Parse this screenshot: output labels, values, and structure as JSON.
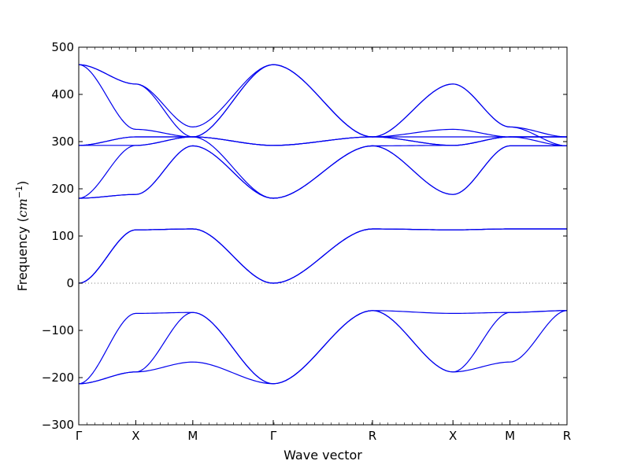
{
  "chart_data": {
    "type": "line",
    "title": "",
    "xlabel": "Wave vector",
    "ylabel_parts": [
      "Frequency (",
      "cm",
      "−1",
      ")"
    ],
    "ylim": [
      -300,
      500
    ],
    "yticks": [
      -300,
      -200,
      -100,
      0,
      100,
      200,
      300,
      400,
      500
    ],
    "ytick_labels": [
      "−300",
      "−200",
      "−100",
      "0",
      "100",
      "200",
      "300",
      "400",
      "500"
    ],
    "k_path_positions": [
      0,
      0.73,
      1.46,
      2.49,
      3.76,
      4.79,
      5.52,
      6.25
    ],
    "k_path_labels": [
      "Γ",
      "X",
      "M",
      "Γ",
      "R",
      "X",
      "M",
      "R"
    ],
    "xlim": [
      0,
      6.25
    ],
    "zero_line": true,
    "grid": false,
    "color": "#0000ee",
    "series": [
      {
        "x": [
          0,
          0.73,
          1.46,
          2.49,
          3.76,
          4.79,
          5.52,
          6.25
        ],
        "y": [
          -213,
          -188,
          -167,
          -213,
          -58,
          -188,
          -167,
          -58
        ]
      },
      {
        "x": [
          0,
          0.73,
          1.46,
          2.49,
          3.76,
          4.79,
          5.52,
          6.25
        ],
        "y": [
          -213,
          -188,
          -62,
          -213,
          -58,
          -188,
          -62,
          -58
        ]
      },
      {
        "x": [
          0,
          0.73,
          1.46,
          2.49,
          3.76,
          4.79,
          5.52,
          6.25
        ],
        "y": [
          -213,
          -64,
          -62,
          -213,
          -58,
          -64,
          -62,
          -58
        ]
      },
      {
        "x": [
          0,
          0.73,
          1.46,
          2.49,
          3.76,
          4.79,
          5.52,
          6.25
        ],
        "y": [
          0,
          113,
          115,
          0,
          115,
          113,
          115,
          115
        ]
      },
      {
        "x": [
          0,
          0.73,
          1.46,
          2.49,
          3.76,
          4.79,
          5.52,
          6.25
        ],
        "y": [
          0,
          113,
          115,
          0,
          115,
          113,
          115,
          115
        ]
      },
      {
        "x": [
          0,
          0.73,
          1.46,
          2.49,
          3.76,
          4.79,
          5.52,
          6.25
        ],
        "y": [
          0,
          113,
          115,
          0,
          115,
          113,
          115,
          115
        ]
      },
      {
        "x": [
          0,
          0.73,
          1.46,
          2.49,
          3.76,
          4.79,
          5.52,
          6.25
        ],
        "y": [
          180,
          188,
          291,
          180,
          291,
          188,
          291,
          291
        ]
      },
      {
        "x": [
          0,
          0.73,
          1.46,
          2.49,
          3.76,
          4.79,
          5.52,
          6.25
        ],
        "y": [
          180,
          188,
          291,
          180,
          291,
          188,
          291,
          291
        ]
      },
      {
        "x": [
          0,
          0.73,
          1.46,
          2.49,
          3.76,
          4.79,
          5.52,
          6.25
        ],
        "y": [
          180,
          292,
          310,
          180,
          291,
          292,
          310,
          291
        ]
      },
      {
        "x": [
          0,
          0.73,
          1.46,
          2.49,
          3.76,
          4.79,
          5.52,
          6.25
        ],
        "y": [
          292,
          292,
          310,
          292,
          310,
          292,
          310,
          310
        ]
      },
      {
        "x": [
          0,
          0.73,
          1.46,
          2.49,
          3.76,
          4.79,
          5.52,
          6.25
        ],
        "y": [
          292,
          310,
          310,
          292,
          310,
          310,
          310,
          310
        ]
      },
      {
        "x": [
          0,
          0.73,
          1.46,
          2.49,
          3.76,
          4.79,
          5.52,
          6.25
        ],
        "y": [
          292,
          310,
          310,
          292,
          310,
          326,
          310,
          310
        ]
      },
      {
        "x": [
          0,
          0.73,
          1.46,
          2.49,
          3.76,
          4.79,
          5.52,
          6.25
        ],
        "y": [
          463,
          326,
          310,
          463,
          310,
          422,
          331,
          310
        ]
      },
      {
        "x": [
          0,
          0.73,
          1.46,
          2.49,
          3.76,
          4.79,
          5.52,
          6.25
        ],
        "y": [
          463,
          422,
          331,
          463,
          310,
          422,
          331,
          291
        ]
      },
      {
        "x": [
          0,
          0.73,
          1.46,
          2.49,
          3.76,
          4.79,
          5.52,
          6.25
        ],
        "y": [
          463,
          422,
          310,
          463,
          310,
          292,
          310,
          310
        ]
      }
    ]
  }
}
